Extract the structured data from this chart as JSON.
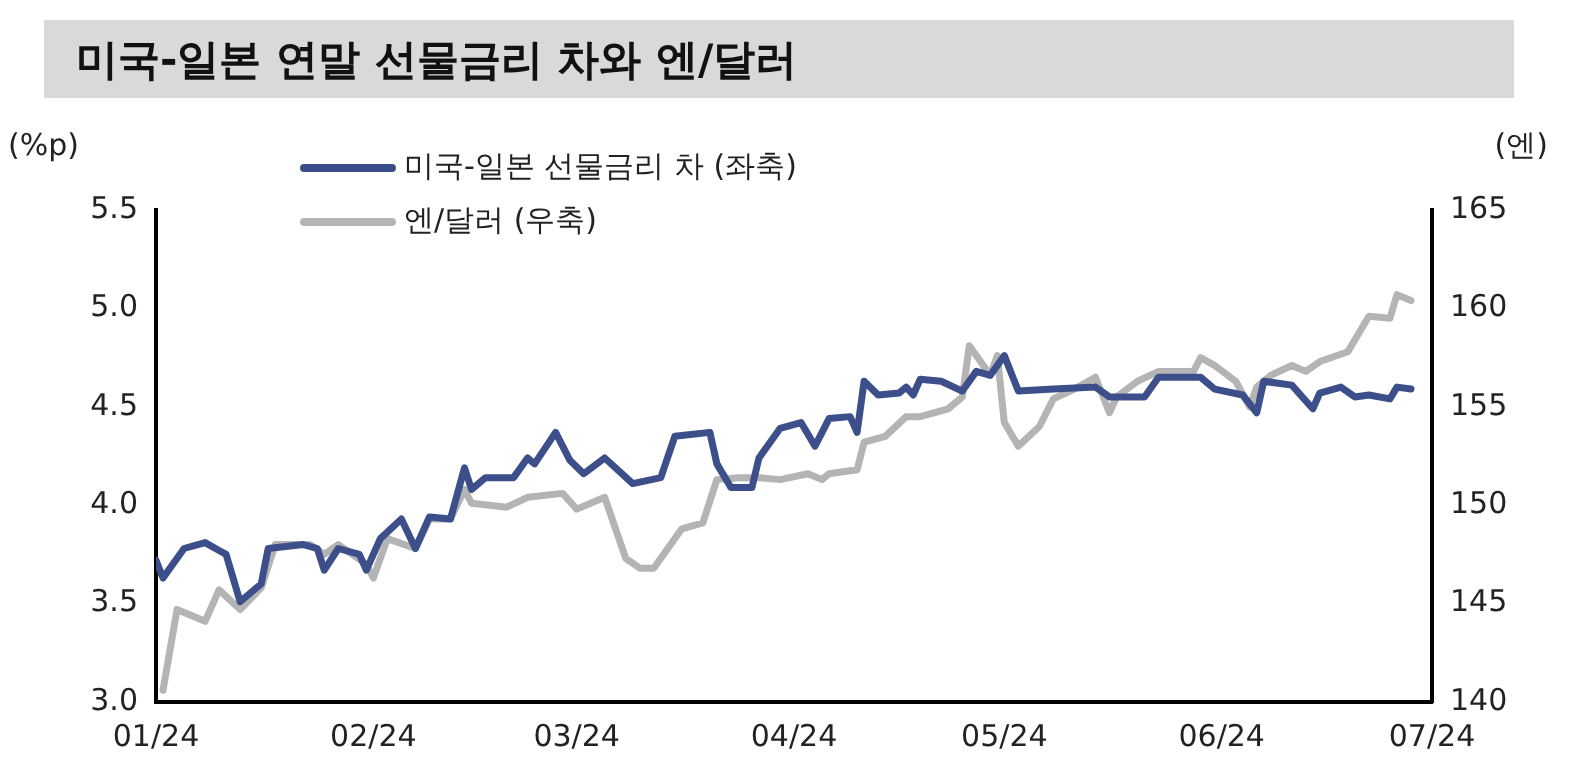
{
  "chart_data": {
    "type": "line",
    "title": "미국-일본 연말 선물금리 차와 엔/달러",
    "ylabel": "(%p)",
    "y2label": "(엔)",
    "legend": "top left",
    "grid": false,
    "marker": "none",
    "line_style": "solid",
    "xlim": [
      "2024-01-01",
      "2024-07-01"
    ],
    "xticks": [
      {
        "value": "2024-01-01",
        "label": "01/24"
      },
      {
        "value": "2024-02-01",
        "label": "02/24"
      },
      {
        "value": "2024-03-01",
        "label": "03/24"
      },
      {
        "value": "2024-04-01",
        "label": "04/24"
      },
      {
        "value": "2024-05-01",
        "label": "05/24"
      },
      {
        "value": "2024-06-01",
        "label": "06/24"
      },
      {
        "value": "2024-07-01",
        "label": "07/24"
      }
    ],
    "ylim": [
      3.0,
      5.5
    ],
    "yticks": [
      {
        "value": 3.0,
        "label": "3.0"
      },
      3.5,
      {
        "value": 4.0,
        "label": "4.0"
      },
      4.5,
      {
        "value": 5.0,
        "label": "5.0"
      },
      5.5
    ],
    "y2lim": [
      140,
      165
    ],
    "y2ticks": [
      140,
      145,
      150,
      155,
      160,
      165
    ],
    "series": [
      {
        "name": "미국-일본 선물금리 차 (좌축)",
        "color": "#3d4f8a",
        "x": [
          "2024-01-01",
          "2024-01-02",
          "2024-01-05",
          "2024-01-08",
          "2024-01-10",
          "2024-01-11",
          "2024-01-13",
          "2024-01-16",
          "2024-01-17",
          "2024-01-22",
          "2024-01-24",
          "2024-01-25",
          "2024-01-27",
          "2024-01-30",
          "2024-01-31",
          "2024-02-02",
          "2024-02-05",
          "2024-02-07",
          "2024-02-09",
          "2024-02-12",
          "2024-02-14",
          "2024-02-15",
          "2024-02-17",
          "2024-02-21",
          "2024-02-23",
          "2024-02-24",
          "2024-02-27",
          "2024-02-29",
          "2024-03-02",
          "2024-03-05",
          "2024-03-09",
          "2024-03-13",
          "2024-03-15",
          "2024-03-20",
          "2024-03-21",
          "2024-03-23",
          "2024-03-26",
          "2024-03-27",
          "2024-03-30",
          "2024-04-02",
          "2024-04-04",
          "2024-04-06",
          "2024-04-09",
          "2024-04-10",
          "2024-04-11",
          "2024-04-13",
          "2024-04-16",
          "2024-04-17",
          "2024-04-18",
          "2024-04-19",
          "2024-04-22",
          "2024-04-25",
          "2024-04-27",
          "2024-04-29",
          "2024-05-01",
          "2024-05-03",
          "2024-05-08",
          "2024-05-14",
          "2024-05-16",
          "2024-05-21",
          "2024-05-23",
          "2024-05-29",
          "2024-05-31",
          "2024-06-04",
          "2024-06-06",
          "2024-06-07",
          "2024-06-11",
          "2024-06-14",
          "2024-06-15",
          "2024-06-18",
          "2024-06-20",
          "2024-06-22",
          "2024-06-25",
          "2024-06-26",
          "2024-06-28"
        ],
        "values": [
          3.72,
          3.63,
          3.78,
          3.81,
          3.77,
          3.75,
          3.51,
          3.6,
          3.78,
          3.8,
          3.78,
          3.67,
          3.78,
          3.75,
          3.67,
          3.83,
          3.93,
          3.78,
          3.94,
          3.93,
          4.19,
          4.08,
          4.14,
          4.14,
          4.24,
          4.21,
          4.37,
          4.23,
          4.16,
          4.24,
          4.11,
          4.14,
          4.35,
          4.37,
          4.21,
          4.09,
          4.09,
          4.24,
          4.39,
          4.42,
          4.3,
          4.44,
          4.45,
          4.37,
          4.63,
          4.56,
          4.57,
          4.6,
          4.56,
          4.64,
          4.63,
          4.58,
          4.68,
          4.66,
          4.76,
          4.58,
          4.59,
          4.6,
          4.55,
          4.55,
          4.65,
          4.65,
          4.59,
          4.56,
          4.47,
          4.63,
          4.61,
          4.49,
          4.57,
          4.6,
          4.55,
          4.56,
          4.54,
          4.6,
          4.59
        ]
      },
      {
        "name": "엔/달러 (우축)",
        "color": "#b4b4b4",
        "axis": "y2",
        "x": [
          "2024-01-02",
          "2024-01-04",
          "2024-01-08",
          "2024-01-10",
          "2024-01-13",
          "2024-01-16",
          "2024-01-18",
          "2024-01-23",
          "2024-01-25",
          "2024-01-27",
          "2024-01-31",
          "2024-02-01",
          "2024-02-03",
          "2024-02-07",
          "2024-02-09",
          "2024-02-12",
          "2024-02-14",
          "2024-02-15",
          "2024-02-20",
          "2024-02-23",
          "2024-02-28",
          "2024-03-01",
          "2024-03-05",
          "2024-03-08",
          "2024-03-10",
          "2024-03-12",
          "2024-03-14",
          "2024-03-16",
          "2024-03-19",
          "2024-03-21",
          "2024-03-24",
          "2024-03-27",
          "2024-03-30",
          "2024-04-03",
          "2024-04-05",
          "2024-04-06",
          "2024-04-10",
          "2024-04-11",
          "2024-04-14",
          "2024-04-17",
          "2024-04-19",
          "2024-04-23",
          "2024-04-25",
          "2024-04-26",
          "2024-04-29",
          "2024-04-30",
          "2024-05-01",
          "2024-05-03",
          "2024-05-06",
          "2024-05-08",
          "2024-05-11",
          "2024-05-14",
          "2024-05-16",
          "2024-05-17",
          "2024-05-20",
          "2024-05-23",
          "2024-05-28",
          "2024-05-29",
          "2024-05-31",
          "2024-06-03",
          "2024-06-05",
          "2024-06-06",
          "2024-06-08",
          "2024-06-11",
          "2024-06-13",
          "2024-06-15",
          "2024-06-19",
          "2024-06-22",
          "2024-06-25",
          "2024-06-26",
          "2024-06-28"
        ],
        "values": [
          140.6,
          144.7,
          144.1,
          145.7,
          144.7,
          145.8,
          148.0,
          148.0,
          147.5,
          148.0,
          147.0,
          146.3,
          148.3,
          147.8,
          149.3,
          149.3,
          150.8,
          150.1,
          149.9,
          150.4,
          150.6,
          149.8,
          150.4,
          147.3,
          146.8,
          146.8,
          147.8,
          148.8,
          149.1,
          151.3,
          151.4,
          151.4,
          151.3,
          151.6,
          151.3,
          151.6,
          151.8,
          153.2,
          153.5,
          154.5,
          154.5,
          154.9,
          155.5,
          158.1,
          156.6,
          157.6,
          154.2,
          153.0,
          154.0,
          155.4,
          155.9,
          156.5,
          154.7,
          155.5,
          156.3,
          156.8,
          156.8,
          157.5,
          157.1,
          156.3,
          155.0,
          156.0,
          156.6,
          157.1,
          156.8,
          157.3,
          157.8,
          159.6,
          159.5,
          160.7,
          160.4
        ]
      }
    ]
  }
}
